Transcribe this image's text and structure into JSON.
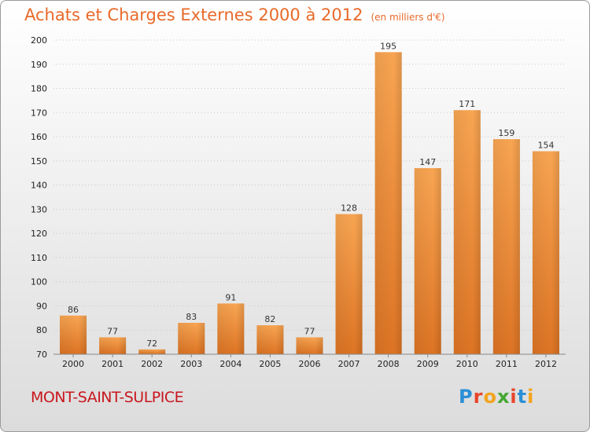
{
  "header": {
    "title": "Achats et Charges Externes 2000 à 2012",
    "unit": "(en milliers d'€)"
  },
  "footer": {
    "place": "MONT-SAINT-SULPICE",
    "brand": "Proxiti"
  },
  "colors": {
    "title": "#e86a2a",
    "place": "#c8171e",
    "bar_top": "#f8a552",
    "bar_bottom": "#dd7424"
  },
  "chart_data": {
    "type": "bar",
    "title": "Achats et Charges Externes 2000 à 2012",
    "subtitle": "(en milliers d'€)",
    "xlabel": "",
    "ylabel": "",
    "categories": [
      "2000",
      "2001",
      "2002",
      "2003",
      "2004",
      "2005",
      "2006",
      "2007",
      "2008",
      "2009",
      "2010",
      "2011",
      "2012"
    ],
    "values": [
      86,
      77,
      72,
      83,
      91,
      82,
      77,
      128,
      195,
      147,
      171,
      159,
      154
    ],
    "ylim": [
      70,
      200
    ],
    "yticks": [
      70,
      80,
      90,
      100,
      110,
      120,
      130,
      140,
      150,
      160,
      170,
      180,
      190,
      200
    ],
    "grid": true,
    "legend": "none"
  }
}
